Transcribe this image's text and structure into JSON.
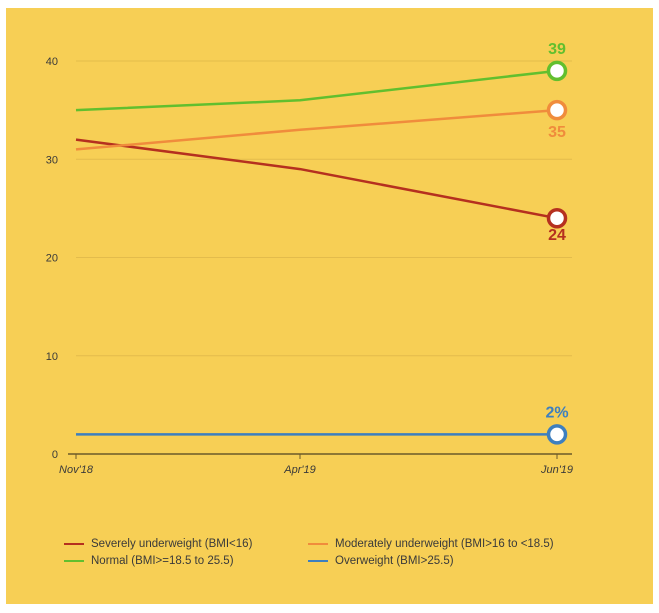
{
  "colors": {
    "background": "#f7cf55",
    "grid": "#e3bc4c",
    "axis": "#6b5a2a",
    "severely": "#b5301f",
    "moderately": "#f08c3c",
    "normal": "#62bf2e",
    "overweight": "#3d7fbf"
  },
  "chart_data": {
    "type": "line",
    "x": [
      "Nov'18",
      "Apr'19",
      "Jun'19"
    ],
    "ylim": [
      0,
      40
    ],
    "yticks": [
      0,
      10,
      20,
      30,
      40
    ],
    "grid": true,
    "legend_position": "bottom",
    "series": [
      {
        "name": "Severely underweight (BMI<16)",
        "values": [
          32,
          29,
          24
        ],
        "color": "#b5301f",
        "end_label": "24"
      },
      {
        "name": "Moderately underweight (BMI>16 to <18.5)",
        "values": [
          31,
          33,
          35
        ],
        "color": "#f08c3c",
        "end_label": "35"
      },
      {
        "name": "Normal (BMI>=18.5 to 25.5)",
        "values": [
          35,
          36,
          39
        ],
        "color": "#62bf2e",
        "end_label": "39"
      },
      {
        "name": "Overweight (BMI>25.5)",
        "values": [
          2,
          2,
          2
        ],
        "color": "#3d7fbf",
        "end_label": "2%"
      }
    ]
  }
}
